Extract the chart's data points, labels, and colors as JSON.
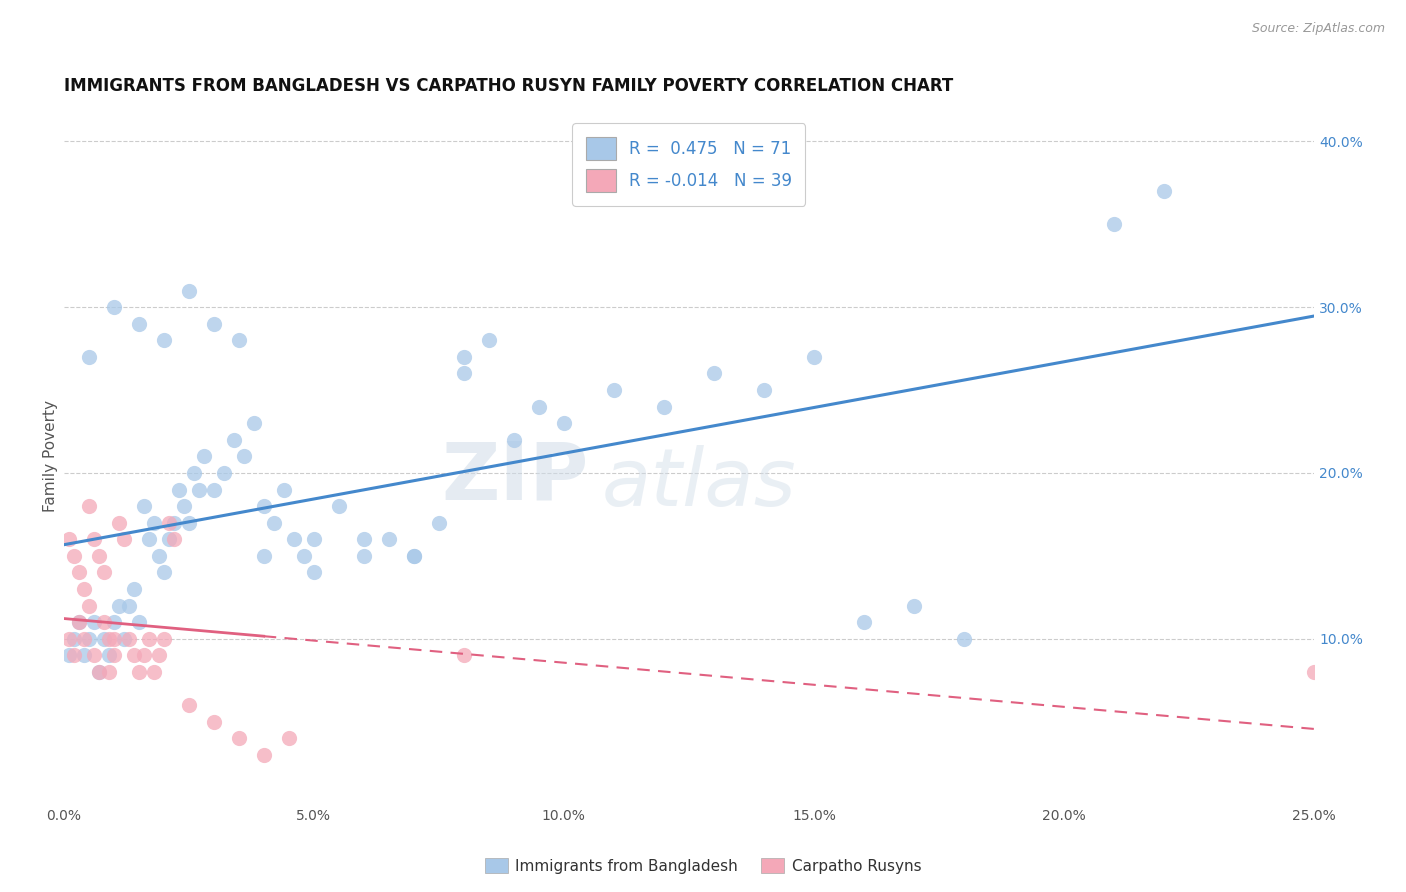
{
  "title": "IMMIGRANTS FROM BANGLADESH VS CARPATHO RUSYN FAMILY POVERTY CORRELATION CHART",
  "source": "Source: ZipAtlas.com",
  "ylabel": "Family Poverty",
  "xlim": [
    0.0,
    0.25
  ],
  "ylim": [
    0.0,
    0.42
  ],
  "xtick_labels": [
    "0.0%",
    "5.0%",
    "10.0%",
    "15.0%",
    "20.0%",
    "25.0%"
  ],
  "xtick_vals": [
    0.0,
    0.05,
    0.1,
    0.15,
    0.2,
    0.25
  ],
  "ytick_labels_right": [
    "10.0%",
    "20.0%",
    "30.0%",
    "40.0%"
  ],
  "ytick_vals": [
    0.1,
    0.2,
    0.3,
    0.4
  ],
  "blue_color": "#a8c8e8",
  "pink_color": "#f4a8b8",
  "blue_line_color": "#4488cc",
  "pink_line_color": "#e06080",
  "legend_R_blue": "R =  0.475",
  "legend_N_blue": "N = 71",
  "legend_R_pink": "R = -0.014",
  "legend_N_pink": "N = 39",
  "legend_label_blue": "Immigrants from Bangladesh",
  "legend_label_pink": "Carpatho Rusyns",
  "title_fontsize": 12,
  "axis_label_fontsize": 11,
  "tick_fontsize": 10,
  "legend_fontsize": 12,
  "background_color": "#ffffff",
  "grid_color": "#cccccc",
  "blue_x": [
    0.001,
    0.002,
    0.003,
    0.004,
    0.005,
    0.006,
    0.007,
    0.008,
    0.009,
    0.01,
    0.011,
    0.012,
    0.013,
    0.014,
    0.015,
    0.016,
    0.017,
    0.018,
    0.019,
    0.02,
    0.021,
    0.022,
    0.023,
    0.024,
    0.025,
    0.026,
    0.027,
    0.028,
    0.03,
    0.032,
    0.034,
    0.036,
    0.038,
    0.04,
    0.042,
    0.044,
    0.046,
    0.048,
    0.05,
    0.055,
    0.06,
    0.065,
    0.07,
    0.075,
    0.08,
    0.085,
    0.09,
    0.095,
    0.1,
    0.11,
    0.12,
    0.13,
    0.14,
    0.15,
    0.16,
    0.17,
    0.18,
    0.005,
    0.01,
    0.015,
    0.02,
    0.025,
    0.03,
    0.035,
    0.04,
    0.05,
    0.06,
    0.07,
    0.08,
    0.21,
    0.22
  ],
  "blue_y": [
    0.09,
    0.1,
    0.11,
    0.09,
    0.1,
    0.11,
    0.08,
    0.1,
    0.09,
    0.11,
    0.12,
    0.1,
    0.12,
    0.13,
    0.11,
    0.18,
    0.16,
    0.17,
    0.15,
    0.14,
    0.16,
    0.17,
    0.19,
    0.18,
    0.17,
    0.2,
    0.19,
    0.21,
    0.19,
    0.2,
    0.22,
    0.21,
    0.23,
    0.18,
    0.17,
    0.19,
    0.16,
    0.15,
    0.16,
    0.18,
    0.15,
    0.16,
    0.15,
    0.17,
    0.26,
    0.28,
    0.22,
    0.24,
    0.23,
    0.25,
    0.24,
    0.26,
    0.25,
    0.27,
    0.11,
    0.12,
    0.1,
    0.27,
    0.3,
    0.29,
    0.28,
    0.31,
    0.29,
    0.28,
    0.15,
    0.14,
    0.16,
    0.15,
    0.27,
    0.35,
    0.37
  ],
  "pink_x": [
    0.001,
    0.001,
    0.002,
    0.002,
    0.003,
    0.003,
    0.004,
    0.004,
    0.005,
    0.005,
    0.006,
    0.006,
    0.007,
    0.007,
    0.008,
    0.008,
    0.009,
    0.009,
    0.01,
    0.01,
    0.011,
    0.012,
    0.013,
    0.014,
    0.015,
    0.016,
    0.017,
    0.018,
    0.019,
    0.02,
    0.021,
    0.022,
    0.025,
    0.03,
    0.035,
    0.04,
    0.045,
    0.08,
    0.25
  ],
  "pink_y": [
    0.1,
    0.16,
    0.09,
    0.15,
    0.11,
    0.14,
    0.1,
    0.13,
    0.12,
    0.18,
    0.09,
    0.16,
    0.08,
    0.15,
    0.11,
    0.14,
    0.1,
    0.08,
    0.09,
    0.1,
    0.17,
    0.16,
    0.1,
    0.09,
    0.08,
    0.09,
    0.1,
    0.08,
    0.09,
    0.1,
    0.17,
    0.16,
    0.06,
    0.05,
    0.04,
    0.03,
    0.04,
    0.09,
    0.08
  ]
}
